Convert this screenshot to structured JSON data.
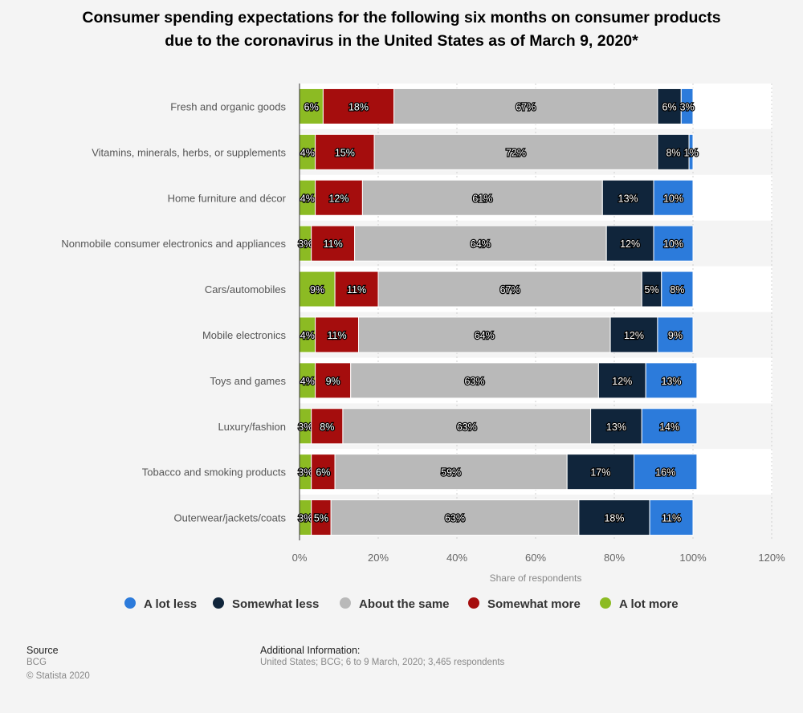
{
  "chart_data": {
    "type": "bar",
    "orientation": "horizontal",
    "stacked": true,
    "title_lines": [
      "Consumer spending expectations for the following six months on consumer products",
      "due to the coronavirus in the United States as of March 9, 2020*"
    ],
    "xlabel": "Share of respondents",
    "xlim": [
      0,
      120
    ],
    "xticks": [
      "0%",
      "20%",
      "40%",
      "60%",
      "80%",
      "100%",
      "120%"
    ],
    "grid": true,
    "legend_position": "bottom",
    "categories": [
      "Fresh and organic goods",
      "Vitamins, minerals, herbs, or supplements",
      "Home furniture and décor",
      "Nonmobile consumer electronics and appliances",
      "Cars/automobiles",
      "Mobile electronics",
      "Toys and games",
      "Luxury/fashion",
      "Tobacco and smoking products",
      "Outerwear/jackets/coats"
    ],
    "series": [
      {
        "name": "A lot more",
        "color": "#8cbb23",
        "values": [
          6,
          4,
          4,
          3,
          9,
          4,
          4,
          3,
          3,
          3
        ]
      },
      {
        "name": "Somewhat more",
        "color": "#a50d0d",
        "values": [
          18,
          15,
          12,
          11,
          11,
          11,
          9,
          8,
          6,
          5
        ]
      },
      {
        "name": "About the same",
        "color": "#b9b9b9",
        "values": [
          67,
          72,
          61,
          64,
          67,
          64,
          63,
          63,
          59,
          63
        ]
      },
      {
        "name": "Somewhat less",
        "color": "#10253b",
        "values": [
          6,
          8,
          13,
          12,
          5,
          12,
          12,
          13,
          17,
          18
        ]
      },
      {
        "name": "A lot less",
        "color": "#2c7bdb",
        "values": [
          3,
          1,
          10,
          10,
          8,
          9,
          13,
          14,
          16,
          11
        ]
      }
    ],
    "legend_order": [
      "A lot less",
      "Somewhat less",
      "About the same",
      "Somewhat more",
      "A lot more"
    ]
  },
  "footer": {
    "source_label": "Source",
    "source": "BCG",
    "copyright": "© Statista 2020",
    "info_label": "Additional Information:",
    "info": "United States; BCG; 6 to 9 March, 2020; 3,465 respondents"
  }
}
